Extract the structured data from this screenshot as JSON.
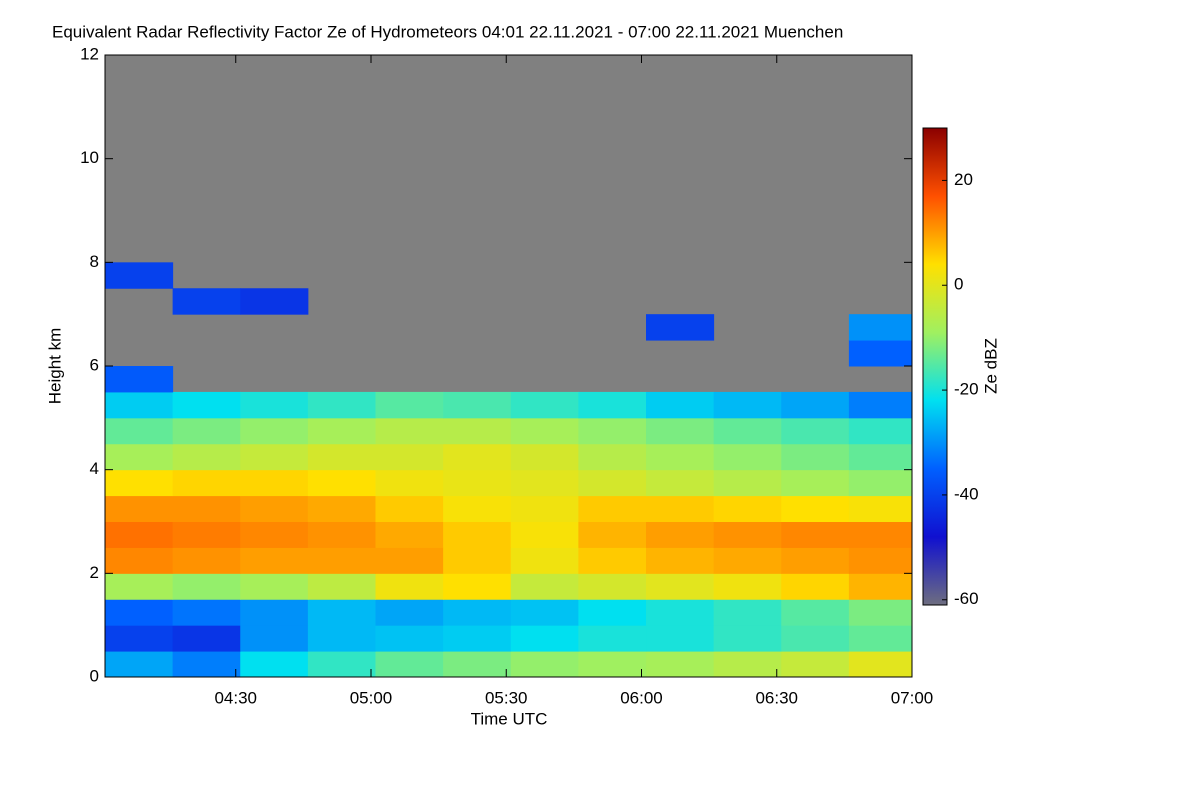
{
  "chart_data": {
    "type": "heatmap",
    "title": "Equivalent Radar Reflectivity Factor Ze of Hydrometeors   04:01 22.11.2021 - 07:00 22.11.2021 Muenchen",
    "xlabel": "Time UTC",
    "ylabel": "Height km",
    "colorbar_label": "Ze dBZ",
    "xlim": [
      "04:01",
      "07:00"
    ],
    "xticks": [
      "04:30",
      "05:00",
      "05:30",
      "06:00",
      "06:30",
      "07:00"
    ],
    "ylim": [
      0,
      12
    ],
    "yticks": [
      0,
      2,
      4,
      6,
      8,
      10,
      12
    ],
    "zlim": [
      -61,
      30
    ],
    "zticks": [
      -60,
      -40,
      -20,
      0,
      20
    ],
    "colors": [
      "#6e6e80",
      "#1010d0",
      "#0060ff",
      "#00e0f0",
      "#a0f060",
      "#ffe000",
      "#ff5000",
      "#8b0000"
    ],
    "background": "#808080",
    "x": [
      "04:01",
      "04:16",
      "04:31",
      "04:46",
      "05:01",
      "05:16",
      "05:31",
      "05:46",
      "06:01",
      "06:16",
      "06:31",
      "06:46"
    ],
    "y": [
      0,
      0.5,
      1,
      1.5,
      2,
      2.5,
      3,
      3.5,
      4,
      4.5,
      5,
      5.5,
      6,
      6.5,
      7,
      7.5,
      8,
      8.5,
      9,
      9.5,
      10,
      10.5,
      11,
      11.5
    ],
    "z": [
      [
        -28,
        -32,
        -22,
        -18,
        -14,
        -12,
        -10,
        -9,
        -8,
        -6,
        -4,
        0
      ],
      [
        -40,
        -42,
        -30,
        -26,
        -25,
        -24,
        -22,
        -20,
        -20,
        -18,
        -16,
        -14
      ],
      [
        -35,
        -33,
        -30,
        -26,
        -28,
        -26,
        -25,
        -22,
        -20,
        -18,
        -15,
        -12
      ],
      [
        -8,
        -10,
        -8,
        -5,
        2,
        4,
        -4,
        -2,
        0,
        2,
        5,
        8
      ],
      [
        12,
        11,
        10,
        10,
        10,
        6,
        2,
        6,
        8,
        9,
        10,
        11
      ],
      [
        14,
        13,
        12,
        11,
        9,
        6,
        3,
        8,
        10,
        11,
        12,
        12
      ],
      [
        11,
        11,
        10,
        9,
        6,
        3,
        2,
        6,
        6,
        5,
        4,
        3
      ],
      [
        4,
        5,
        5,
        4,
        2,
        1,
        0,
        -2,
        -4,
        -6,
        -8,
        -10
      ],
      [
        -8,
        -6,
        -4,
        -2,
        -2,
        0,
        -2,
        -6,
        -8,
        -10,
        -12,
        -14
      ],
      [
        -14,
        -12,
        -10,
        -8,
        -6,
        -6,
        -8,
        -10,
        -12,
        -14,
        -16,
        -18
      ],
      [
        -24,
        -22,
        -20,
        -18,
        -15,
        -16,
        -18,
        -20,
        -24,
        -26,
        -28,
        -32
      ],
      [
        -36,
        null,
        null,
        null,
        null,
        null,
        null,
        null,
        null,
        null,
        null,
        null
      ],
      [
        null,
        null,
        null,
        null,
        null,
        null,
        null,
        null,
        null,
        null,
        null,
        -35
      ],
      [
        null,
        null,
        null,
        null,
        null,
        null,
        null,
        null,
        -40,
        null,
        null,
        -30
      ],
      [
        null,
        -40,
        -42,
        null,
        null,
        null,
        null,
        null,
        null,
        null,
        null,
        null
      ],
      [
        -40,
        null,
        null,
        null,
        null,
        null,
        null,
        null,
        null,
        null,
        null,
        null
      ],
      [
        null,
        null,
        null,
        null,
        null,
        null,
        null,
        null,
        null,
        null,
        null,
        null
      ],
      [
        null,
        null,
        null,
        null,
        null,
        null,
        null,
        null,
        null,
        null,
        null,
        null
      ],
      [
        null,
        null,
        null,
        null,
        null,
        null,
        null,
        null,
        null,
        null,
        null,
        null
      ],
      [
        null,
        null,
        null,
        null,
        null,
        null,
        null,
        null,
        null,
        null,
        null,
        null
      ],
      [
        null,
        null,
        null,
        null,
        null,
        null,
        null,
        null,
        null,
        null,
        null,
        null
      ],
      [
        null,
        null,
        null,
        null,
        null,
        null,
        null,
        null,
        null,
        null,
        null,
        null
      ],
      [
        null,
        null,
        null,
        null,
        null,
        null,
        null,
        null,
        null,
        null,
        null,
        null
      ],
      [
        null,
        null,
        null,
        null,
        null,
        null,
        null,
        null,
        null,
        null,
        null,
        null
      ]
    ]
  }
}
